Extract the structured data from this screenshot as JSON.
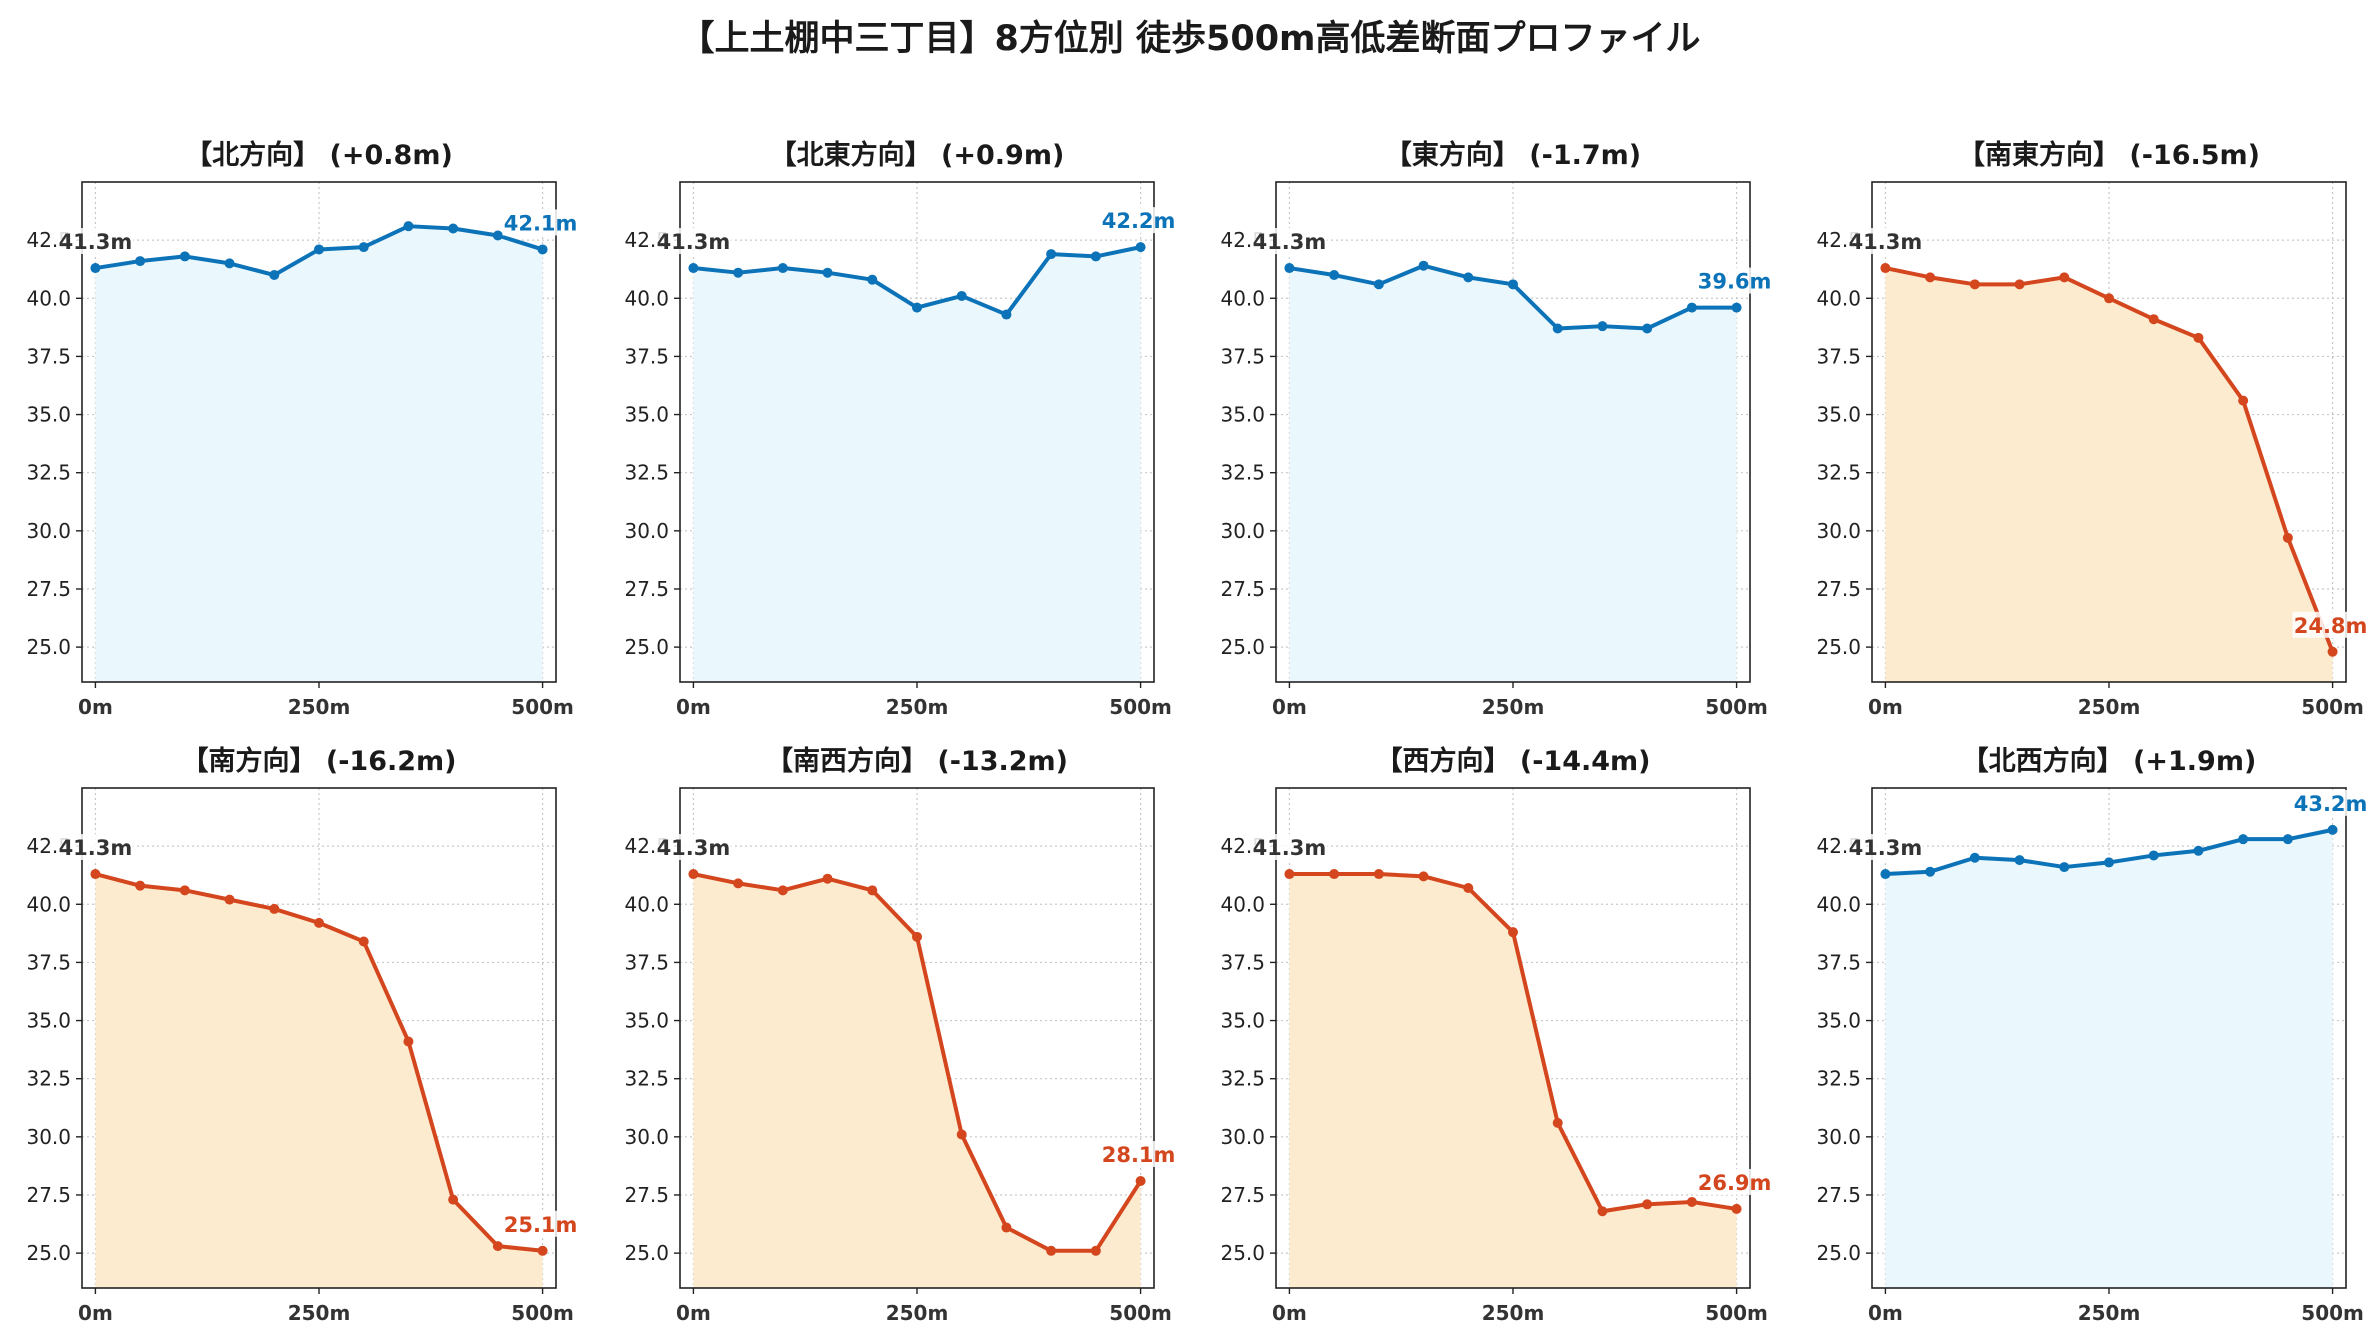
{
  "title": "【上土棚中三丁目】8方位別 徒歩500m高低差断面プロファイル",
  "colors": {
    "up": "#1f77b4",
    "upLine": "#0c73b8",
    "upFill": "#eaf7fc",
    "down": "#d4461e",
    "downFill": "#fdebcf"
  },
  "chart_data": [
    {
      "type": "area",
      "title": "【北方向】 (+0.8m)",
      "trend": "up",
      "x": [
        0,
        50,
        100,
        150,
        200,
        250,
        300,
        350,
        400,
        450,
        500
      ],
      "y": [
        41.3,
        41.6,
        41.8,
        41.5,
        41.0,
        42.1,
        42.2,
        43.1,
        43.0,
        42.7,
        42.1
      ],
      "start_label": "41.3m",
      "end_label": "42.1m"
    },
    {
      "type": "area",
      "title": "【北東方向】 (+0.9m)",
      "trend": "up",
      "x": [
        0,
        50,
        100,
        150,
        200,
        250,
        300,
        350,
        400,
        450,
        500
      ],
      "y": [
        41.3,
        41.1,
        41.3,
        41.1,
        40.8,
        39.6,
        40.1,
        39.3,
        41.9,
        41.8,
        42.2
      ],
      "start_label": "41.3m",
      "end_label": "42.2m"
    },
    {
      "type": "area",
      "title": "【東方向】 (-1.7m)",
      "trend": "up",
      "x": [
        0,
        50,
        100,
        150,
        200,
        250,
        300,
        350,
        400,
        450,
        500
      ],
      "y": [
        41.3,
        41.0,
        40.6,
        41.4,
        40.9,
        40.6,
        38.7,
        38.8,
        38.7,
        39.6,
        39.6
      ],
      "start_label": "41.3m",
      "end_label": "39.6m"
    },
    {
      "type": "area",
      "title": "【南東方向】 (-16.5m)",
      "trend": "down",
      "x": [
        0,
        50,
        100,
        150,
        200,
        250,
        300,
        350,
        400,
        450,
        500
      ],
      "y": [
        41.3,
        40.9,
        40.6,
        40.6,
        40.9,
        40.0,
        39.1,
        38.3,
        35.6,
        29.7,
        24.8
      ],
      "start_label": "41.3m",
      "end_label": "24.8m"
    },
    {
      "type": "area",
      "title": "【南方向】 (-16.2m)",
      "trend": "down",
      "x": [
        0,
        50,
        100,
        150,
        200,
        250,
        300,
        350,
        400,
        450,
        500
      ],
      "y": [
        41.3,
        40.8,
        40.6,
        40.2,
        39.8,
        39.2,
        38.4,
        34.1,
        27.3,
        25.3,
        25.1
      ],
      "start_label": "41.3m",
      "end_label": "25.1m"
    },
    {
      "type": "area",
      "title": "【南西方向】 (-13.2m)",
      "trend": "down",
      "x": [
        0,
        50,
        100,
        150,
        200,
        250,
        300,
        350,
        400,
        450,
        500
      ],
      "y": [
        41.3,
        40.9,
        40.6,
        41.1,
        40.6,
        38.6,
        30.1,
        26.1,
        25.1,
        25.1,
        28.1
      ],
      "start_label": "41.3m",
      "end_label": "28.1m"
    },
    {
      "type": "area",
      "title": "【西方向】 (-14.4m)",
      "trend": "down",
      "x": [
        0,
        50,
        100,
        150,
        200,
        250,
        300,
        350,
        400,
        450,
        500
      ],
      "y": [
        41.3,
        41.3,
        41.3,
        41.2,
        40.7,
        38.8,
        30.6,
        26.8,
        27.1,
        27.2,
        26.9
      ],
      "start_label": "41.3m",
      "end_label": "26.9m"
    },
    {
      "type": "area",
      "title": "【北西方向】 (+1.9m)",
      "trend": "up",
      "x": [
        0,
        50,
        100,
        150,
        200,
        250,
        300,
        350,
        400,
        450,
        500
      ],
      "y": [
        41.3,
        41.4,
        42.0,
        41.9,
        41.6,
        41.8,
        42.1,
        42.3,
        42.8,
        42.8,
        43.2
      ],
      "start_label": "41.3m",
      "end_label": "43.2m"
    }
  ],
  "axis": {
    "ylim": [
      23.5,
      45.0
    ],
    "yticks": [
      25.0,
      27.5,
      30.0,
      32.5,
      35.0,
      37.5,
      40.0,
      42.5
    ],
    "ytick_labels": [
      "25.0",
      "27.5",
      "30.0",
      "32.5",
      "35.0",
      "37.5",
      "40.0",
      "42.5"
    ],
    "xlim": [
      -15,
      515
    ],
    "xticks": [
      0,
      250,
      500
    ],
    "xtick_labels": [
      "0m",
      "250m",
      "500m"
    ],
    "grid": true
  }
}
